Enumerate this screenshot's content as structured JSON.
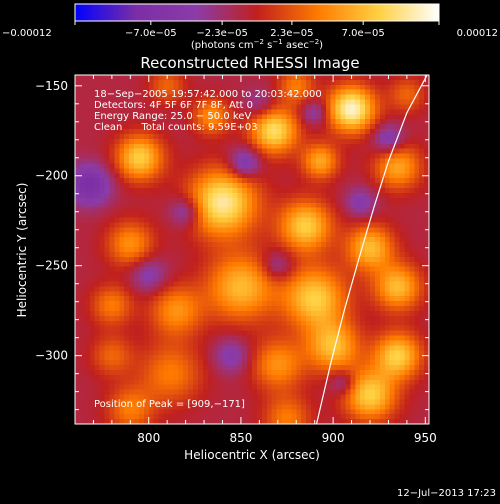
{
  "chart_data": {
    "type": "heatmap",
    "title": "Reconstructed RHESSI Image",
    "xlabel": "Heliocentric X (arcsec)",
    "ylabel": "Heliocentric Y (arcsec)",
    "xlim": [
      760,
      952
    ],
    "ylim": [
      -338,
      -144
    ],
    "x_ticks": [
      800,
      850,
      900,
      950
    ],
    "x_tick_labels": [
      "800",
      "850",
      "900",
      "950"
    ],
    "y_ticks": [
      -150,
      -200,
      -250,
      -300
    ],
    "y_tick_labels": [
      "−150",
      "−200",
      "−250",
      "−300"
    ],
    "colorbar": {
      "range": [
        -0.00012,
        0.00012
      ],
      "tick_values": [
        -0.00012,
        -7e-05,
        -2.3e-05,
        2.3e-05,
        7e-05,
        0.00012
      ],
      "tick_labels": [
        "−0.00012",
        "−7.0e−05",
        "−2.3e−05",
        "2.3e−05",
        "7.0e−05",
        "0.00012"
      ],
      "units_line1": "(photons cm",
      "units_exp1": "−2",
      "units_line2": " s",
      "units_exp2": "−1",
      "units_line3": " asec",
      "units_exp3": "−2",
      "units_close": ")",
      "stops": [
        "#0000ff",
        "#7b2ea6",
        "#8b3ca8",
        "#c0201e",
        "#ff7a00",
        "#ffd040",
        "#ffffff"
      ]
    },
    "info_lines": [
      "18−Sep−2005 19:57:42.000 to 20:03:42.000",
      "Detectors: 4F 5F 6F 7F 8F, Att 0",
      "Energy Range: 25.0 − 50.0 keV",
      "Clean      Total counts: 9.59E+03"
    ],
    "peak_label": "Position of Peak = [909,−171]",
    "peak": [
      909,
      -171
    ],
    "limb_curve": [
      [
        951,
        -144
      ],
      [
        940,
        -165
      ],
      [
        930,
        -192
      ],
      [
        922,
        -218
      ],
      [
        914,
        -246
      ],
      [
        906,
        -275
      ],
      [
        899,
        -303
      ],
      [
        891,
        -338
      ]
    ],
    "blobs": [
      {
        "x": 910,
        "y": -163,
        "s": 9,
        "v": 0.00012
      },
      {
        "x": 868,
        "y": -175,
        "s": 9,
        "v": 0.0001
      },
      {
        "x": 834,
        "y": -167,
        "s": 7,
        "v": 6e-05
      },
      {
        "x": 795,
        "y": -190,
        "s": 9,
        "v": 9e-05
      },
      {
        "x": 840,
        "y": -215,
        "s": 13,
        "v": 0.00011
      },
      {
        "x": 893,
        "y": -192,
        "s": 7,
        "v": 7e-05
      },
      {
        "x": 935,
        "y": -195,
        "s": 9,
        "v": 7e-05
      },
      {
        "x": 885,
        "y": -228,
        "s": 10,
        "v": 9e-05
      },
      {
        "x": 920,
        "y": -240,
        "s": 9,
        "v": 8e-05
      },
      {
        "x": 790,
        "y": -238,
        "s": 9,
        "v": 6e-05
      },
      {
        "x": 780,
        "y": -272,
        "s": 8,
        "v": 5e-05
      },
      {
        "x": 815,
        "y": -275,
        "s": 10,
        "v": 6e-05
      },
      {
        "x": 850,
        "y": -262,
        "s": 13,
        "v": 8e-05
      },
      {
        "x": 890,
        "y": -268,
        "s": 12,
        "v": 9e-05
      },
      {
        "x": 935,
        "y": -262,
        "s": 9,
        "v": 8e-05
      },
      {
        "x": 900,
        "y": -295,
        "s": 10,
        "v": 8e-05
      },
      {
        "x": 935,
        "y": -300,
        "s": 9,
        "v": 9e-05
      },
      {
        "x": 920,
        "y": -322,
        "s": 10,
        "v": 9e-05
      },
      {
        "x": 870,
        "y": -305,
        "s": 10,
        "v": 6e-05
      },
      {
        "x": 812,
        "y": -310,
        "s": 12,
        "v": 5e-05
      },
      {
        "x": 780,
        "y": -300,
        "s": 8,
        "v": 4e-05
      },
      {
        "x": 790,
        "y": -330,
        "s": 9,
        "v": 5e-05
      },
      {
        "x": 875,
        "y": -335,
        "s": 9,
        "v": 5e-05
      },
      {
        "x": 810,
        "y": -150,
        "s": 7,
        "v": 4e-05
      },
      {
        "x": 880,
        "y": -150,
        "s": 7,
        "v": 5e-05
      },
      {
        "x": 940,
        "y": -155,
        "s": 7,
        "v": 4e-05
      },
      {
        "x": 768,
        "y": -205,
        "s": 8,
        "v": -7e-05
      },
      {
        "x": 820,
        "y": -220,
        "s": 6,
        "v": -5e-05
      },
      {
        "x": 852,
        "y": -193,
        "s": 6,
        "v": -6e-05
      },
      {
        "x": 890,
        "y": -165,
        "s": 5,
        "v": -4e-05
      },
      {
        "x": 930,
        "y": -180,
        "s": 6,
        "v": -5e-05
      },
      {
        "x": 800,
        "y": -255,
        "s": 7,
        "v": -4e-05
      },
      {
        "x": 915,
        "y": -215,
        "s": 6,
        "v": -4e-05
      },
      {
        "x": 870,
        "y": -250,
        "s": 6,
        "v": -4e-05
      },
      {
        "x": 845,
        "y": -300,
        "s": 7,
        "v": -4e-05
      },
      {
        "x": 905,
        "y": -315,
        "s": 5,
        "v": -4e-05
      },
      {
        "x": 860,
        "y": -160,
        "s": 6,
        "v": -3e-05
      }
    ]
  },
  "timestamp": "12−Jul−2013 17:23"
}
